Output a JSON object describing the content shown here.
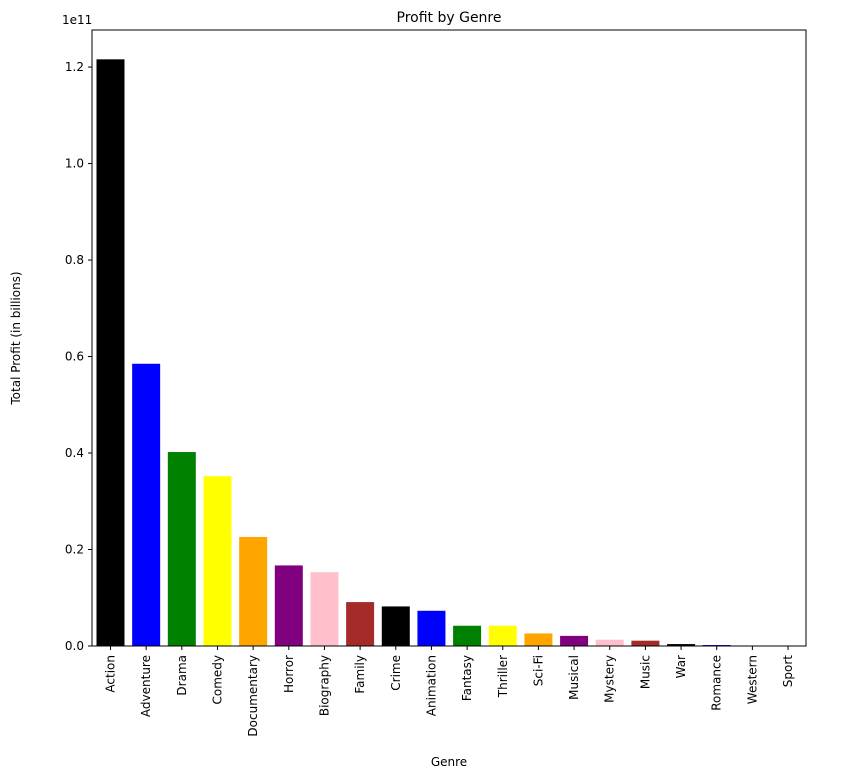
{
  "chart_data": {
    "type": "bar",
    "title": "Profit by Genre",
    "xlabel": "Genre",
    "ylabel": "Total Profit (in billions)",
    "offset_label": "1e11",
    "categories": [
      "Action",
      "Adventure",
      "Drama",
      "Comedy",
      "Documentary",
      "Horror",
      "Biography",
      "Family",
      "Crime",
      "Animation",
      "Fantasy",
      "Thriller",
      "Sci-Fi",
      "Musical",
      "Mystery",
      "Music",
      "War",
      "Romance",
      "Western",
      "Sport"
    ],
    "values": [
      121600000000.0,
      58500000000.0,
      40200000000.0,
      35200000000.0,
      22600000000.0,
      16700000000.0,
      15300000000.0,
      9100000000.0,
      8200000000.0,
      7300000000.0,
      4200000000.0,
      4200000000.0,
      2600000000.0,
      2100000000.0,
      1300000000.0,
      1100000000.0,
      400000000.0,
      200000000.0,
      0,
      0
    ],
    "colors": [
      "#000000",
      "#0000ff",
      "#008000",
      "#ffff00",
      "#ffa500",
      "#800080",
      "#ffc0cb",
      "#a52a2a",
      "#000000",
      "#0000ff",
      "#008000",
      "#ffff00",
      "#ffa500",
      "#800080",
      "#ffc0cb",
      "#a52a2a",
      "#000000",
      "#0000ff",
      "#008000",
      "#ffff00"
    ],
    "yticks": [
      "0.0",
      "0.2",
      "0.4",
      "0.6",
      "0.8",
      "1.0",
      "1.2"
    ],
    "ytick_values": [
      0,
      20000000000.0,
      40000000000.0,
      60000000000.0,
      80000000000.0,
      100000000000.0,
      120000000000.0
    ],
    "ylim": [
      0,
      127680000000.0
    ],
    "grid": false,
    "legend": "none"
  }
}
